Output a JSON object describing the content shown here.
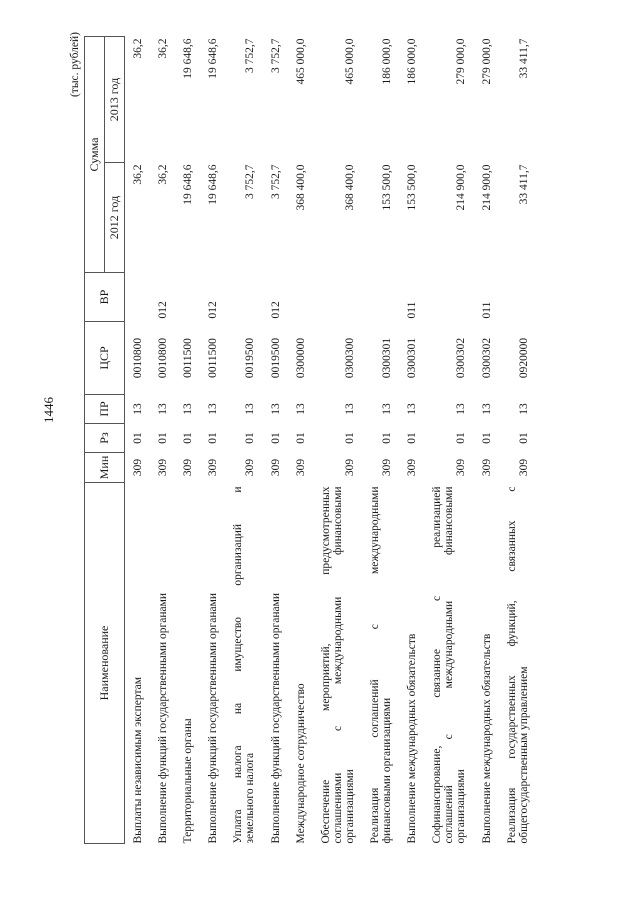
{
  "page_number": "1446",
  "units": "(тыс. рублей)",
  "header": {
    "name": "Наименование",
    "min": "Мин",
    "rz": "Рз",
    "pr": "ПР",
    "csr": "ЦСР",
    "vr": "ВР",
    "sum": "Сумма",
    "y2012": "2012 год",
    "y2013": "2013 год"
  },
  "rows": [
    {
      "name_lines": [
        "Выплаты независимым экспертам"
      ],
      "min": "309",
      "rz": "01",
      "pr": "13",
      "csr": "0010800",
      "vr": "",
      "v2012": "36,2",
      "v2013": "36,2"
    },
    {
      "name_lines": [
        "Выполнение функций государственными органами"
      ],
      "min": "309",
      "rz": "01",
      "pr": "13",
      "csr": "0010800",
      "vr": "012",
      "v2012": "36,2",
      "v2013": "36,2"
    },
    {
      "name_lines": [
        "Территориальные органы"
      ],
      "min": "309",
      "rz": "01",
      "pr": "13",
      "csr": "0011500",
      "vr": "",
      "v2012": "19 648,6",
      "v2013": "19 648,6"
    },
    {
      "name_lines": [
        "Выполнение функций государственными органами"
      ],
      "min": "309",
      "rz": "01",
      "pr": "13",
      "csr": "0011500",
      "vr": "012",
      "v2012": "19 648,6",
      "v2013": "19 648,6"
    },
    {
      "name_lines": [
        "Уплата налога на имущество организаций и",
        "земельного налога"
      ],
      "min": "309",
      "rz": "01",
      "pr": "13",
      "csr": "0019500",
      "vr": "",
      "v2012": "3 752,7",
      "v2013": "3 752,7"
    },
    {
      "name_lines": [
        "Выполнение функций государственными органами"
      ],
      "min": "309",
      "rz": "01",
      "pr": "13",
      "csr": "0019500",
      "vr": "012",
      "v2012": "3 752,7",
      "v2013": "3 752,7"
    },
    {
      "name_lines": [
        "Международное сотрудничество"
      ],
      "min": "309",
      "rz": "01",
      "pr": "13",
      "csr": "0300000",
      "vr": "",
      "v2012": "368 400,0",
      "v2013": "465 000,0"
    },
    {
      "name_lines": [
        "Обеспечение мероприятий, предусмотренных",
        "соглашениями с международными финансовыми",
        "организациями"
      ],
      "min": "309",
      "rz": "01",
      "pr": "13",
      "csr": "0300300",
      "vr": "",
      "v2012": "368 400,0",
      "v2013": "465 000,0"
    },
    {
      "name_lines": [
        "Реализация соглашений с международными",
        "финансовыми организациями"
      ],
      "min": "309",
      "rz": "01",
      "pr": "13",
      "csr": "0300301",
      "vr": "",
      "v2012": "153 500,0",
      "v2013": "186 000,0"
    },
    {
      "name_lines": [
        "Выполнение международных обязательств"
      ],
      "min": "309",
      "rz": "01",
      "pr": "13",
      "csr": "0300301",
      "vr": "011",
      "v2012": "153 500,0",
      "v2013": "186 000,0"
    },
    {
      "name_lines": [
        "Софинансирование, связанное с реализацией",
        "соглашений с международными финансовыми",
        "организациями"
      ],
      "min": "309",
      "rz": "01",
      "pr": "13",
      "csr": "0300302",
      "vr": "",
      "v2012": "214 900,0",
      "v2013": "279 000,0"
    },
    {
      "name_lines": [
        "Выполнение международных обязательств"
      ],
      "min": "309",
      "rz": "01",
      "pr": "13",
      "csr": "0300302",
      "vr": "011",
      "v2012": "214 900,0",
      "v2013": "279 000,0"
    },
    {
      "name_lines": [
        "Реализация государственных функций, связанных с",
        "общегосударственным управлением"
      ],
      "min": "309",
      "rz": "01",
      "pr": "13",
      "csr": "0920000",
      "vr": "",
      "v2012": "33 411,7",
      "v2013": "33 411,7"
    }
  ]
}
